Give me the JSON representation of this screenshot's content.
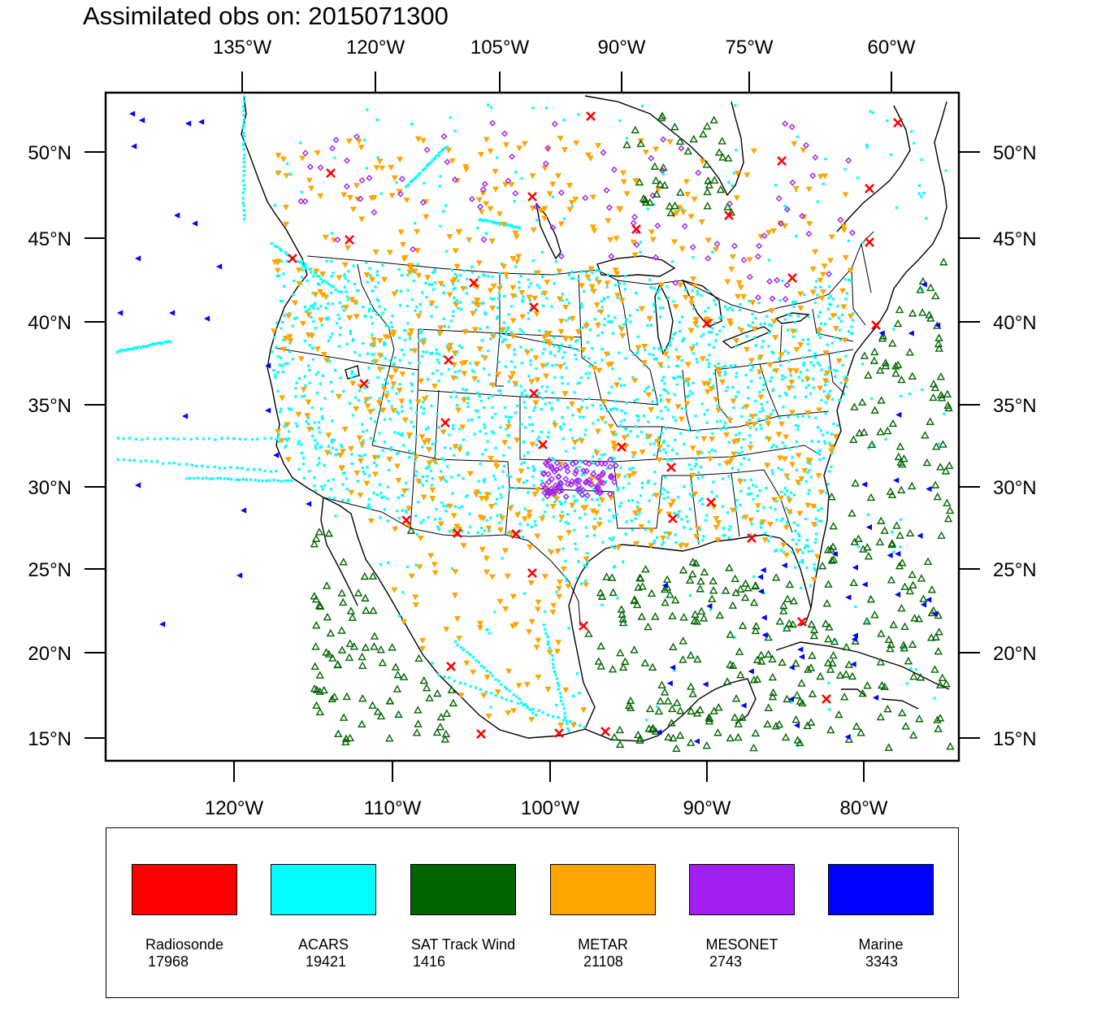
{
  "title": "Assimilated obs on: 2015071300",
  "axes": {
    "top_ticks": [
      "135°W",
      "120°W",
      "105°W",
      "90°W",
      "75°W",
      "60°W"
    ],
    "bottom_ticks": [
      "120°W",
      "110°W",
      "100°W",
      "90°W",
      "80°W"
    ],
    "left_ticks": [
      "50°N",
      "45°N",
      "40°N",
      "35°N",
      "30°N",
      "25°N",
      "20°N",
      "15°N"
    ],
    "right_ticks": [
      "50°N",
      "45°N",
      "40°N",
      "35°N",
      "30°N",
      "25°N",
      "20°N",
      "15°N"
    ]
  },
  "legend": {
    "items": [
      {
        "name": "Radiosonde",
        "count": "17968",
        "color": "#ff0000",
        "icon": "x-marker-icon"
      },
      {
        "name": "ACARS",
        "count": "19421",
        "color": "#00ffff",
        "icon": "square-marker-icon"
      },
      {
        "name": "SAT Track Wind",
        "count": "1416",
        "color": "#006400",
        "icon": "triangle-up-marker-icon"
      },
      {
        "name": "METAR",
        "count": "21108",
        "color": "#ffa500",
        "icon": "triangle-down-marker-icon"
      },
      {
        "name": "MESONET",
        "count": "2743",
        "color": "#a020f0",
        "icon": "diamond-marker-icon"
      },
      {
        "name": "Marine",
        "count": "3343",
        "color": "#0000ff",
        "icon": "triangle-left-marker-icon"
      }
    ]
  }
}
